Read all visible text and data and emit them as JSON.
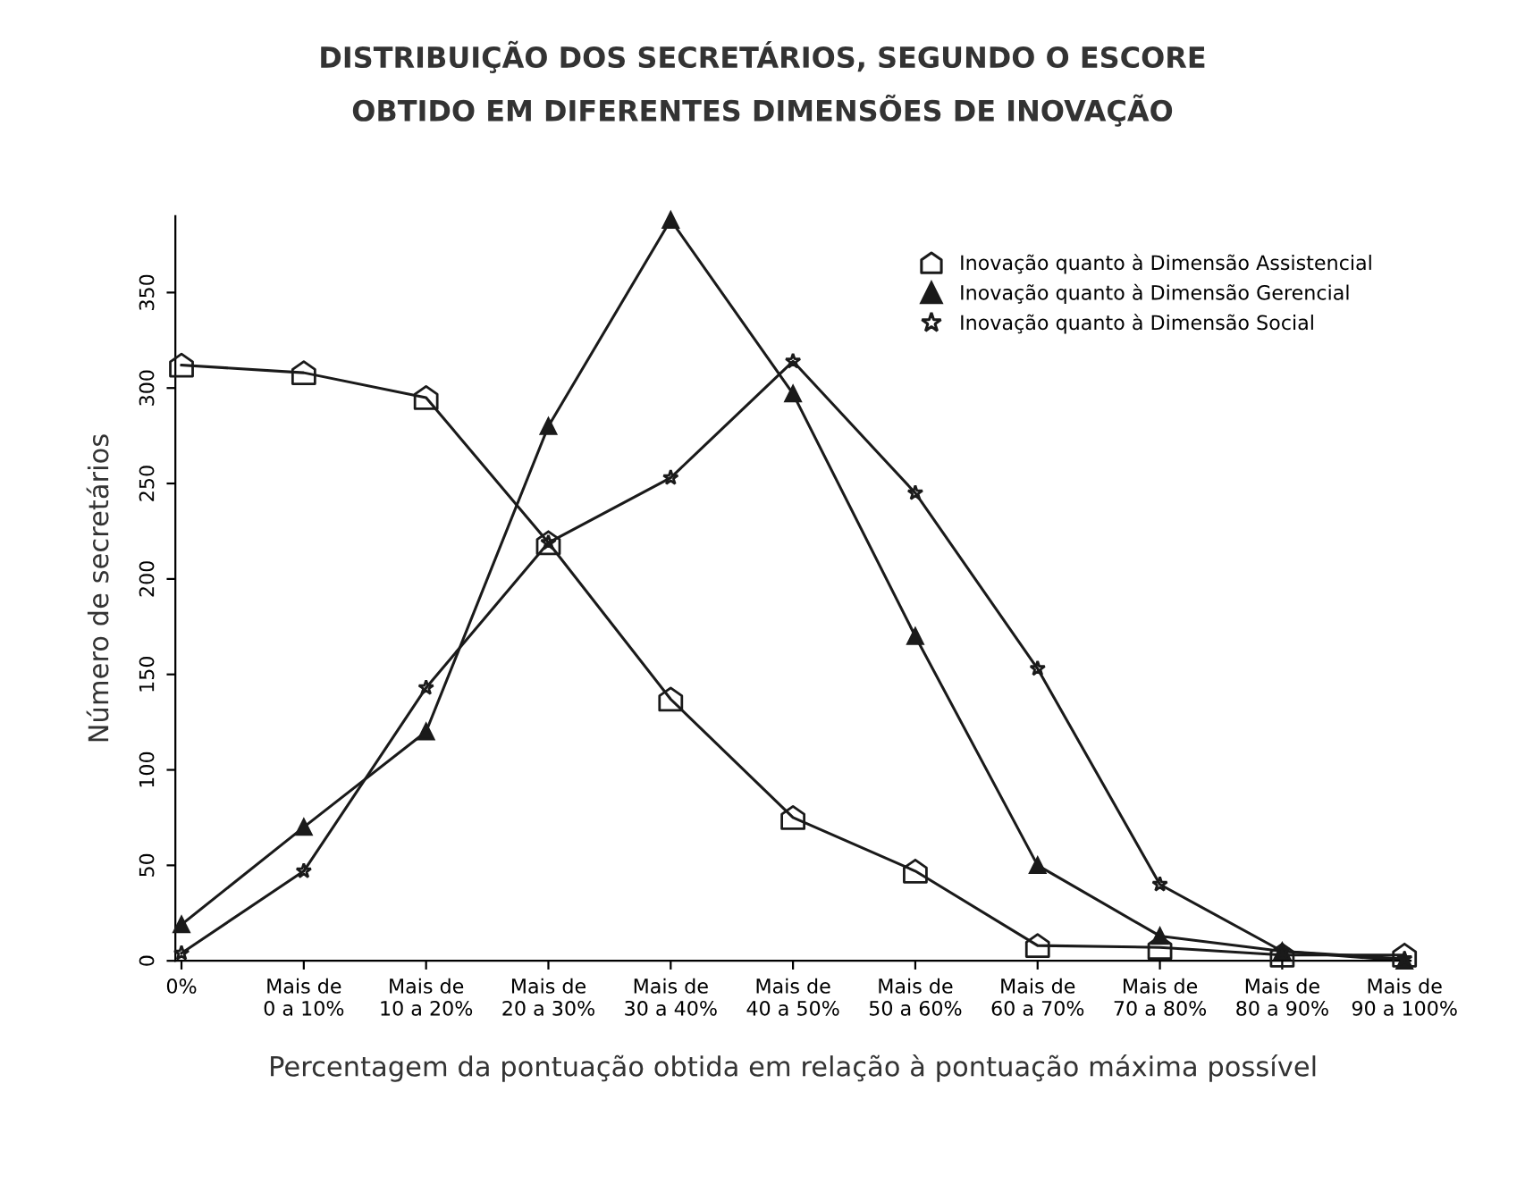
{
  "chart_data": {
    "type": "line",
    "title": "DISTRIBUIÇÃO DOS SECRETÁRIOS, SEGUNDO O ESCORE\nOBTIDO EM DIFERENTES DIMENSÕES DE INOVAÇÃO",
    "xlabel": "Percentagem da pontuação obtida em relação à pontuação máxima possível",
    "ylabel": "Número de secretários",
    "categories": [
      "0%",
      "Mais de\n0 a 10%",
      "Mais de\n10 a 20%",
      "Mais de\n20 a 30%",
      "Mais de\n30 a 40%",
      "Mais de\n40 a 50%",
      "Mais de\n50 a 60%",
      "Mais de\n60 a 70%",
      "Mais de\n70 a 80%",
      "Mais de\n80 a 90%",
      "Mais de\n90 a 100%"
    ],
    "series": [
      {
        "name": "Inovação quanto à Dimensão Assistencial",
        "color": "#1a1a1a",
        "marker": "square",
        "values": [
          312,
          308,
          295,
          219,
          137,
          75,
          47,
          8,
          7,
          3,
          3
        ]
      },
      {
        "name": "Inovação quanto à Dimensão Gerencial",
        "color": "#1a1a1a",
        "marker": "triangle",
        "values": [
          19,
          70,
          120,
          280,
          388,
          297,
          170,
          50,
          13,
          5,
          0
        ]
      },
      {
        "name": "Inovação quanto à Dimensão Social",
        "color": "#1a1a1a",
        "marker": "star",
        "values": [
          4,
          47,
          143,
          219,
          253,
          314,
          245,
          153,
          40,
          5,
          1
        ]
      }
    ],
    "ylim": [
      0,
      390
    ],
    "yticks": [
      0,
      50,
      100,
      150,
      200,
      250,
      300,
      350
    ],
    "grid": false,
    "legend": "top right",
    "line_style": "solid"
  }
}
